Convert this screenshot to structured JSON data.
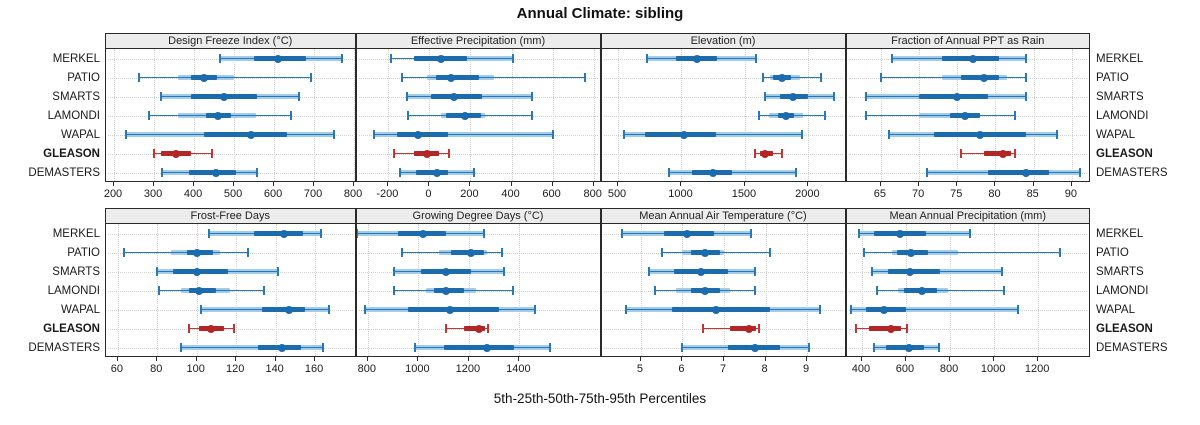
{
  "title": "Annual Climate: sibling",
  "caption": "5th-25th-50th-75th-95th Percentiles",
  "stations": [
    "MERKEL",
    "PATIO",
    "SMARTS",
    "LAMONDI",
    "WAPAL",
    "GLEASON",
    "DEMASTERS"
  ],
  "highlight_station": "GLEASON",
  "colors": {
    "blue_line": "#2878b8",
    "blue_dark": "#1c6bad",
    "blue_light": "#a3cce8",
    "red_line": "#c23535",
    "red_dark": "#b32626",
    "red_light": "#cf6a6a",
    "grid": "#cfcfcf",
    "strip_bg": "#ececec",
    "border": "#2a2a2a"
  },
  "chart_data": [
    {
      "type": "interval",
      "style": "5-25-50-75-95 percentile horizontal intervals with median dot",
      "title": "Design Freeze Index (°C)",
      "grid": "dotted",
      "xlim": [
        180,
        806
      ],
      "ticks": [
        200,
        300,
        400,
        500,
        600,
        700,
        800
      ],
      "series": [
        {
          "station": "MERKEL",
          "p5": 465,
          "p25": 550,
          "p50": 610,
          "p75": 680,
          "p95": 770,
          "band": [
            465,
            770
          ]
        },
        {
          "station": "PATIO",
          "p5": 263,
          "p25": 392,
          "p50": 425,
          "p75": 458,
          "p95": 692,
          "band": [
            361,
            499
          ]
        },
        {
          "station": "SMARTS",
          "p5": 317,
          "p25": 392,
          "p50": 475,
          "p75": 558,
          "p95": 663,
          "band": [
            317,
            663
          ]
        },
        {
          "station": "LAMONDI",
          "p5": 288,
          "p25": 429,
          "p50": 460,
          "p75": 492,
          "p95": 642,
          "band": [
            361,
            556
          ]
        },
        {
          "station": "WAPAL",
          "p5": 229,
          "p25": 425,
          "p50": 543,
          "p75": 633,
          "p95": 750,
          "band": [
            229,
            750
          ]
        },
        {
          "station": "GLEASON",
          "p5": 300,
          "p25": 317,
          "p50": 354,
          "p75": 392,
          "p95": 444,
          "band": [
            317,
            392
          ]
        },
        {
          "station": "DEMASTERS",
          "p5": 321,
          "p25": 388,
          "p50": 454,
          "p75": 504,
          "p95": 558,
          "band": [
            321,
            558
          ]
        }
      ]
    },
    {
      "type": "interval",
      "title": "Effective Precipitation (mm)",
      "xlim": [
        -355,
        838
      ],
      "ticks": [
        -200,
        0,
        200,
        400,
        600,
        800
      ],
      "series": [
        {
          "station": "MERKEL",
          "p5": -185,
          "p25": -75,
          "p50": 55,
          "p75": 185,
          "p95": 405,
          "band": [
            -75,
            405
          ]
        },
        {
          "station": "PATIO",
          "p5": -135,
          "p25": 30,
          "p50": 105,
          "p75": 240,
          "p95": 760,
          "band": [
            -10,
            315
          ]
        },
        {
          "station": "SMARTS",
          "p5": -110,
          "p25": 10,
          "p50": 120,
          "p75": 255,
          "p95": 500,
          "band": [
            -110,
            500
          ]
        },
        {
          "station": "LAMONDI",
          "p5": -105,
          "p25": 80,
          "p50": 175,
          "p75": 250,
          "p95": 500,
          "band": [
            55,
            270
          ]
        },
        {
          "station": "WAPAL",
          "p5": -270,
          "p25": -160,
          "p50": -55,
          "p75": 90,
          "p95": 600,
          "band": [
            -270,
            600
          ]
        },
        {
          "station": "GLEASON",
          "p5": -170,
          "p25": -75,
          "p50": -10,
          "p75": 45,
          "p95": 95,
          "band": [
            -75,
            45
          ]
        },
        {
          "station": "DEMASTERS",
          "p5": -145,
          "p25": -65,
          "p50": 35,
          "p75": 90,
          "p95": 215,
          "band": [
            -145,
            215
          ]
        }
      ]
    },
    {
      "type": "interval",
      "title": "Elevation (m)",
      "xlim": [
        370,
        2300
      ],
      "ticks": [
        500,
        1000,
        1500,
        2000
      ],
      "series": [
        {
          "station": "MERKEL",
          "p5": 730,
          "p25": 960,
          "p50": 1120,
          "p75": 1280,
          "p95": 1590,
          "band": [
            730,
            1590
          ]
        },
        {
          "station": "PATIO",
          "p5": 1640,
          "p25": 1720,
          "p50": 1790,
          "p75": 1860,
          "p95": 2100,
          "band": [
            1700,
            1930
          ]
        },
        {
          "station": "SMARTS",
          "p5": 1660,
          "p25": 1780,
          "p50": 1880,
          "p75": 2000,
          "p95": 2200,
          "band": [
            1660,
            2200
          ]
        },
        {
          "station": "LAMONDI",
          "p5": 1610,
          "p25": 1760,
          "p50": 1820,
          "p75": 1890,
          "p95": 2130,
          "band": [
            1690,
            1960
          ]
        },
        {
          "station": "WAPAL",
          "p5": 550,
          "p25": 710,
          "p50": 1020,
          "p75": 1270,
          "p95": 1950,
          "band": [
            550,
            1950
          ]
        },
        {
          "station": "GLEASON",
          "p5": 1580,
          "p25": 1615,
          "p50": 1655,
          "p75": 1720,
          "p95": 1790,
          "band": [
            1615,
            1720
          ]
        },
        {
          "station": "DEMASTERS",
          "p5": 900,
          "p25": 1080,
          "p50": 1250,
          "p75": 1400,
          "p95": 1900,
          "band": [
            900,
            1900
          ]
        }
      ]
    },
    {
      "type": "interval",
      "title": "Fraction of Annual PPT as Rain",
      "xlim": [
        60.5,
        92.5
      ],
      "ticks": [
        65,
        70,
        75,
        80,
        85,
        90
      ],
      "series": [
        {
          "station": "MERKEL",
          "p5": 66.5,
          "p25": 73,
          "p50": 77,
          "p75": 80.5,
          "p95": 84,
          "band": [
            66.5,
            84
          ]
        },
        {
          "station": "PATIO",
          "p5": 65,
          "p25": 75.5,
          "p50": 78.5,
          "p75": 80.5,
          "p95": 84,
          "band": [
            73,
            81.5
          ]
        },
        {
          "station": "SMARTS",
          "p5": 63,
          "p25": 70,
          "p50": 75,
          "p75": 79,
          "p95": 84,
          "band": [
            63,
            84
          ]
        },
        {
          "station": "LAMONDI",
          "p5": 63,
          "p25": 74,
          "p50": 76,
          "p75": 78,
          "p95": 82.5,
          "band": [
            70,
            78
          ]
        },
        {
          "station": "WAPAL",
          "p5": 66,
          "p25": 72,
          "p50": 78,
          "p75": 84,
          "p95": 88,
          "band": [
            66,
            88
          ]
        },
        {
          "station": "GLEASON",
          "p5": 75.5,
          "p25": 78.5,
          "p50": 81,
          "p75": 82,
          "p95": 82.5,
          "band": [
            78.5,
            82
          ]
        },
        {
          "station": "DEMASTERS",
          "p5": 71,
          "p25": 79,
          "p50": 84,
          "p75": 87,
          "p95": 91,
          "band": [
            71,
            91
          ]
        }
      ]
    },
    {
      "type": "interval",
      "title": "Frost-Free Days",
      "xlim": [
        54,
        181
      ],
      "ticks": [
        60,
        80,
        100,
        120,
        140,
        160
      ],
      "series": [
        {
          "station": "MERKEL",
          "p5": 106,
          "p25": 129,
          "p50": 144,
          "p75": 154,
          "p95": 163,
          "band": [
            106,
            163
          ]
        },
        {
          "station": "PATIO",
          "p5": 63,
          "p25": 95,
          "p50": 100,
          "p75": 108,
          "p95": 126,
          "band": [
            87,
            112
          ]
        },
        {
          "station": "SMARTS",
          "p5": 80,
          "p25": 88,
          "p50": 100,
          "p75": 116,
          "p95": 141,
          "band": [
            80,
            141
          ]
        },
        {
          "station": "LAMONDI",
          "p5": 81,
          "p25": 96,
          "p50": 101,
          "p75": 110,
          "p95": 134,
          "band": [
            92,
            117
          ]
        },
        {
          "station": "WAPAL",
          "p5": 102,
          "p25": 133,
          "p50": 147,
          "p75": 155,
          "p95": 167,
          "band": [
            102,
            167
          ]
        },
        {
          "station": "GLEASON",
          "p5": 96,
          "p25": 101,
          "p50": 107,
          "p75": 114,
          "p95": 119,
          "band": [
            101,
            114
          ]
        },
        {
          "station": "DEMASTERS",
          "p5": 92,
          "p25": 131,
          "p50": 143,
          "p75": 153,
          "p95": 164,
          "band": [
            92,
            164
          ]
        }
      ]
    },
    {
      "type": "interval",
      "title": "Growing Degree Days (°C)",
      "xlim": [
        755,
        1725
      ],
      "ticks": [
        800,
        1000,
        1200,
        1400
      ],
      "series": [
        {
          "station": "MERKEL",
          "p5": 755,
          "p25": 920,
          "p50": 1020,
          "p75": 1110,
          "p95": 1260,
          "band": [
            755,
            1260
          ]
        },
        {
          "station": "PATIO",
          "p5": 935,
          "p25": 1130,
          "p50": 1210,
          "p75": 1260,
          "p95": 1330,
          "band": [
            1080,
            1270
          ]
        },
        {
          "station": "SMARTS",
          "p5": 905,
          "p25": 1010,
          "p50": 1110,
          "p75": 1210,
          "p95": 1340,
          "band": [
            905,
            1340
          ]
        },
        {
          "station": "LAMONDI",
          "p5": 905,
          "p25": 1060,
          "p50": 1110,
          "p75": 1180,
          "p95": 1375,
          "band": [
            1030,
            1230
          ]
        },
        {
          "station": "WAPAL",
          "p5": 790,
          "p25": 960,
          "p50": 1125,
          "p75": 1320,
          "p95": 1460,
          "band": [
            790,
            1460
          ]
        },
        {
          "station": "GLEASON",
          "p5": 1110,
          "p25": 1180,
          "p50": 1240,
          "p75": 1262,
          "p95": 1275,
          "band": [
            1180,
            1262
          ]
        },
        {
          "station": "DEMASTERS",
          "p5": 985,
          "p25": 1100,
          "p50": 1270,
          "p75": 1380,
          "p95": 1520,
          "band": [
            985,
            1520
          ]
        }
      ]
    },
    {
      "type": "interval",
      "title": "Mean Annual Air Temperature (°C)",
      "xlim": [
        4.05,
        9.95
      ],
      "ticks": [
        5,
        6,
        7,
        8,
        9
      ],
      "series": [
        {
          "station": "MERKEL",
          "p5": 4.55,
          "p25": 5.55,
          "p50": 6.1,
          "p75": 6.75,
          "p95": 7.65,
          "band": [
            4.55,
            7.65
          ]
        },
        {
          "station": "PATIO",
          "p5": 5.5,
          "p25": 6.2,
          "p50": 6.55,
          "p75": 6.9,
          "p95": 8.1,
          "band": [
            6.0,
            7.0
          ]
        },
        {
          "station": "SMARTS",
          "p5": 5.2,
          "p25": 5.8,
          "p50": 6.45,
          "p75": 7.1,
          "p95": 7.75,
          "band": [
            5.2,
            7.75
          ]
        },
        {
          "station": "LAMONDI",
          "p5": 5.35,
          "p25": 6.2,
          "p50": 6.55,
          "p75": 6.9,
          "p95": 7.75,
          "band": [
            5.85,
            7.15
          ]
        },
        {
          "station": "WAPAL",
          "p5": 4.65,
          "p25": 5.75,
          "p50": 6.8,
          "p75": 8.1,
          "p95": 9.3,
          "band": [
            4.65,
            9.3
          ]
        },
        {
          "station": "GLEASON",
          "p5": 6.5,
          "p25": 7.15,
          "p50": 7.6,
          "p75": 7.78,
          "p95": 7.85,
          "band": [
            7.15,
            7.78
          ]
        },
        {
          "station": "DEMASTERS",
          "p5": 6.0,
          "p25": 7.1,
          "p50": 7.75,
          "p75": 8.35,
          "p95": 9.05,
          "band": [
            6.0,
            9.05
          ]
        }
      ]
    },
    {
      "type": "interval",
      "title": "Mean Annual Precipitation (mm)",
      "xlim": [
        330,
        1440
      ],
      "ticks": [
        400,
        600,
        800,
        1000,
        1200
      ],
      "series": [
        {
          "station": "MERKEL",
          "p5": 385,
          "p25": 455,
          "p50": 575,
          "p75": 690,
          "p95": 890,
          "band": [
            385,
            890
          ]
        },
        {
          "station": "PATIO",
          "p5": 410,
          "p25": 560,
          "p50": 625,
          "p75": 700,
          "p95": 1300,
          "band": [
            535,
            835
          ]
        },
        {
          "station": "SMARTS",
          "p5": 445,
          "p25": 520,
          "p50": 620,
          "p75": 755,
          "p95": 1035,
          "band": [
            445,
            1035
          ]
        },
        {
          "station": "LAMONDI",
          "p5": 470,
          "p25": 590,
          "p50": 675,
          "p75": 740,
          "p95": 1045,
          "band": [
            565,
            790
          ]
        },
        {
          "station": "WAPAL",
          "p5": 350,
          "p25": 420,
          "p50": 500,
          "p75": 600,
          "p95": 1110,
          "band": [
            350,
            1110
          ]
        },
        {
          "station": "GLEASON",
          "p5": 375,
          "p25": 430,
          "p50": 530,
          "p75": 578,
          "p95": 605,
          "band": [
            430,
            578
          ]
        },
        {
          "station": "DEMASTERS",
          "p5": 455,
          "p25": 510,
          "p50": 615,
          "p75": 680,
          "p95": 750,
          "band": [
            455,
            750
          ]
        }
      ]
    }
  ]
}
